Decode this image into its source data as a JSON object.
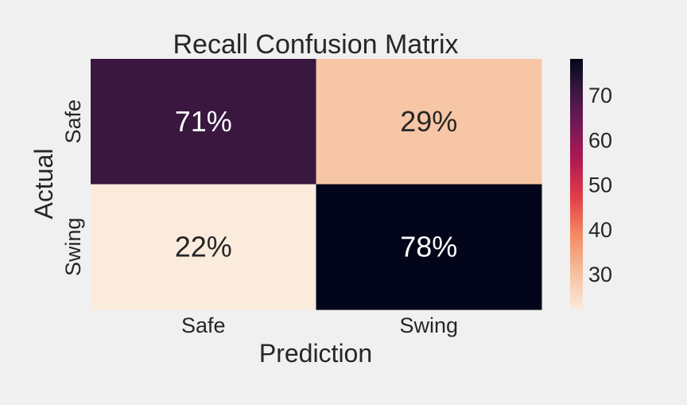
{
  "chart_data": {
    "type": "heatmap",
    "title": "Recall Confusion Matrix",
    "xlabel": "Prediction",
    "ylabel": "Actual",
    "x_categories": [
      "Safe",
      "Swing"
    ],
    "y_categories": [
      "Safe",
      "Swing"
    ],
    "values": [
      [
        71,
        29
      ],
      [
        22,
        78
      ]
    ],
    "value_format": "percent",
    "colormap": "rocket_r",
    "colorbar": {
      "min": 22,
      "max": 78,
      "ticks": [
        30,
        40,
        50,
        60,
        70
      ]
    },
    "grid": false
  }
}
